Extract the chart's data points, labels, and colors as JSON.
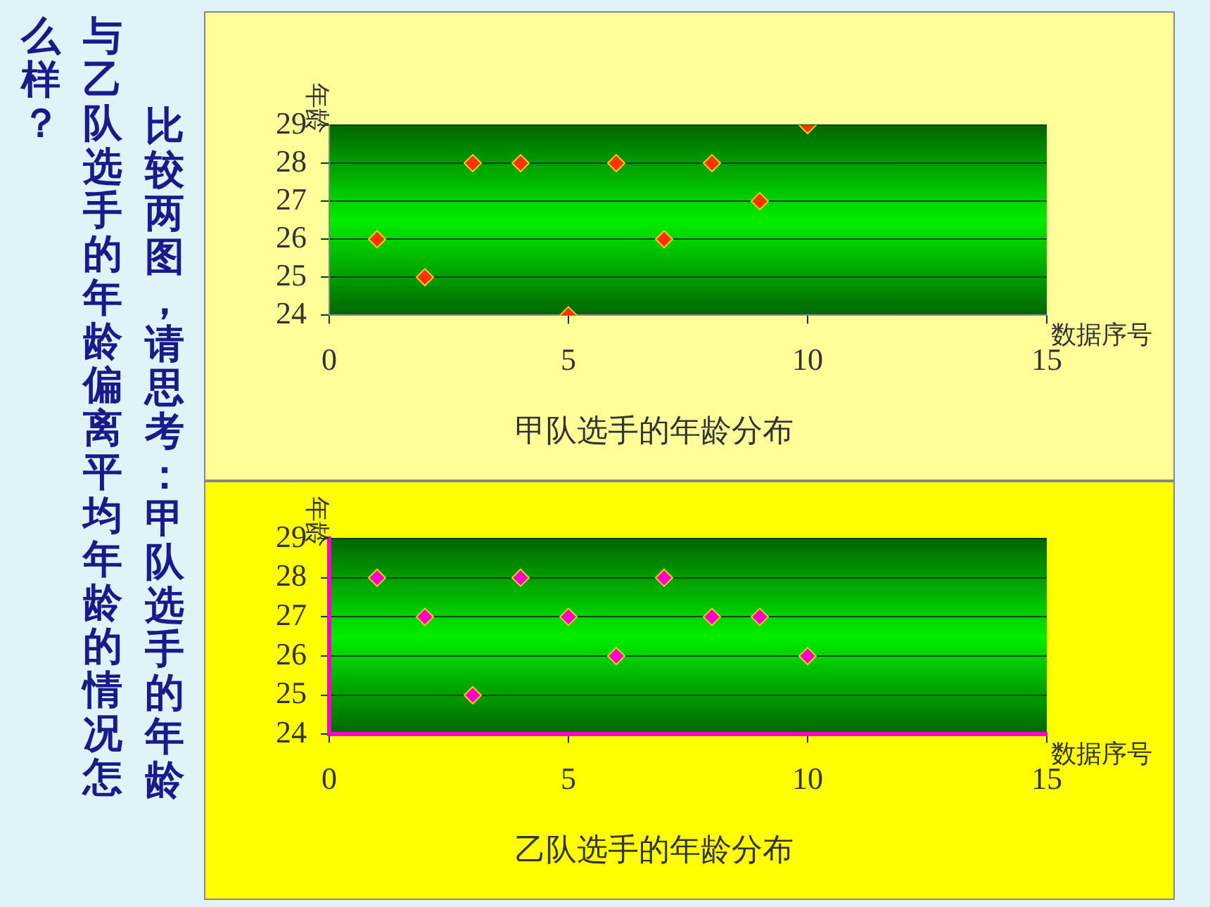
{
  "chart_data": [
    {
      "type": "scatter",
      "title": "甲队选手的年龄分布",
      "xlabel": "数据序号",
      "ylabel": "年龄",
      "series": [
        {
          "color": "#ff3300",
          "x": [
            1,
            2,
            3,
            4,
            5,
            6,
            7,
            8,
            9,
            10
          ],
          "values": [
            26,
            25,
            28,
            28,
            24,
            28,
            26,
            28,
            27,
            29
          ]
        }
      ],
      "xlim": [
        0,
        15
      ],
      "xticks": [
        0,
        5,
        10,
        15
      ],
      "ylim": [
        24,
        29
      ],
      "yticks": [
        24,
        25,
        26,
        27,
        28,
        29
      ],
      "grid": "y",
      "marker": "diamond",
      "annotations": [
        "比较两图，请思考：甲队选手的年龄",
        "与乙队选手的年龄偏离平均年龄的情况怎",
        "么样？"
      ]
    },
    {
      "type": "scatter",
      "title": "乙队选手的年龄分布",
      "xlabel": "数据序号",
      "ylabel": "年龄",
      "series": [
        {
          "color": "#ff00cc",
          "x": [
            1,
            2,
            3,
            4,
            5,
            6,
            7,
            8,
            9,
            10
          ],
          "values": [
            28,
            27,
            25,
            28,
            27,
            26,
            28,
            27,
            27,
            26
          ]
        }
      ],
      "xlim": [
        0,
        15
      ],
      "xticks": [
        0,
        5,
        10,
        15
      ],
      "ylim": [
        24,
        29
      ],
      "yticks": [
        24,
        25,
        26,
        27,
        28,
        29
      ],
      "grid": "y",
      "marker": "diamond"
    }
  ]
}
